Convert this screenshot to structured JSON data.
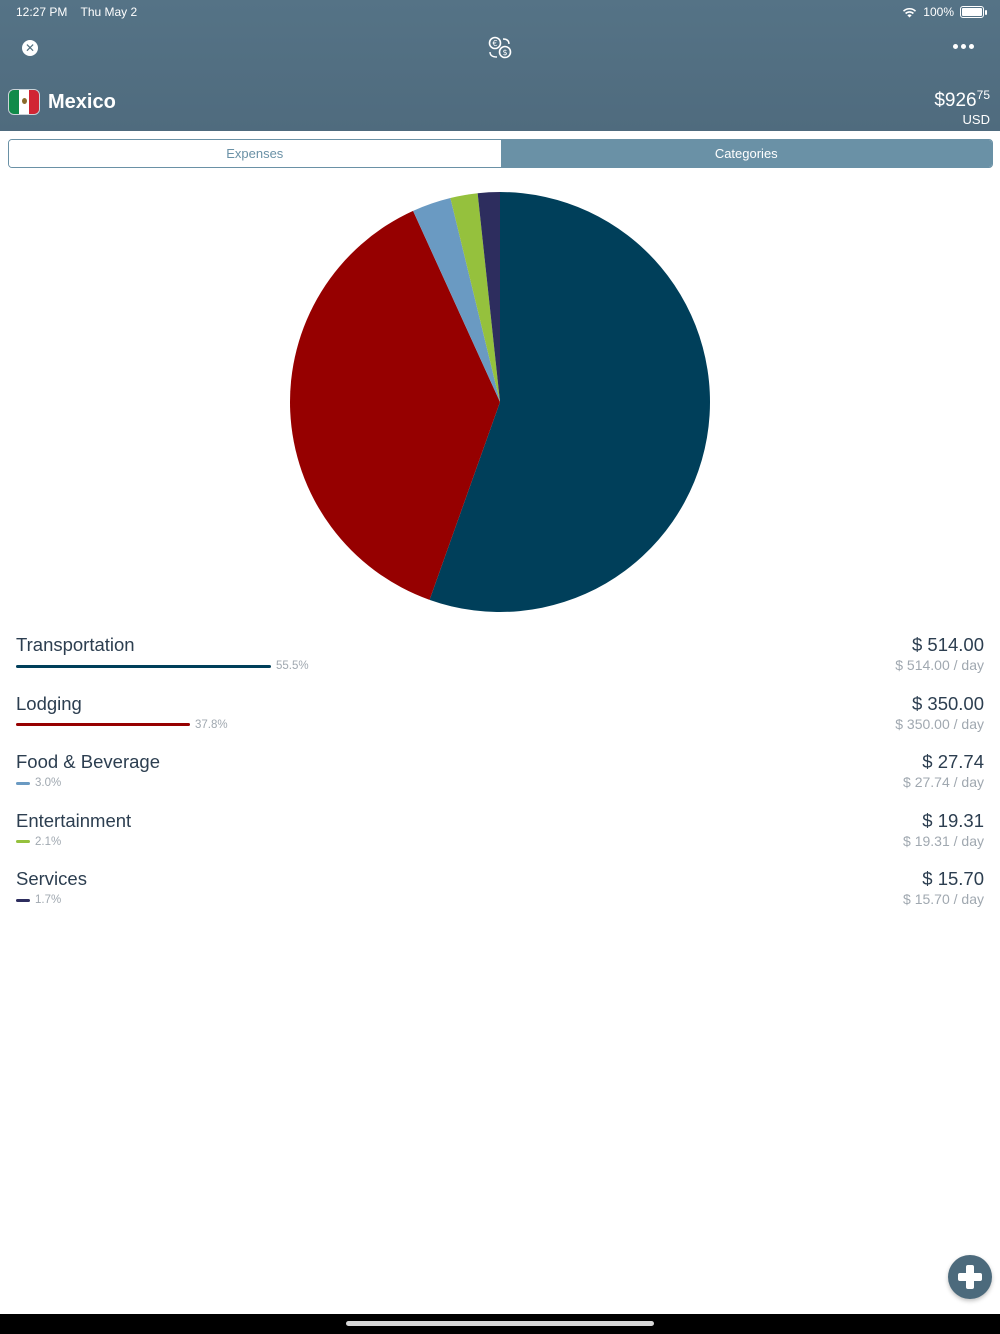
{
  "status": {
    "time": "12:27 PM",
    "date": "Thu May 2",
    "battery": "100%"
  },
  "header": {
    "trip_name": "Mexico",
    "total_whole": "$926",
    "total_cents": "75",
    "total_currency": "USD"
  },
  "tabs": {
    "expenses": "Expenses",
    "categories": "Categories",
    "selected": "Categories"
  },
  "chart_data": {
    "type": "pie",
    "slices": [
      {
        "label": "Transportation",
        "value": 55.5,
        "color": "#003f5a"
      },
      {
        "label": "Lodging",
        "value": 37.8,
        "color": "#960000"
      },
      {
        "label": "Food & Beverage",
        "value": 3.0,
        "color": "#6a9ac2"
      },
      {
        "label": "Entertainment",
        "value": 2.1,
        "color": "#95c13d"
      },
      {
        "label": "Services",
        "value": 1.7,
        "color": "#2d2d5e"
      }
    ]
  },
  "categories": [
    {
      "name": "Transportation",
      "percent": "55.5%",
      "amount": "$ 514.00",
      "per_day": "$ 514.00 / day",
      "color": "#003f5a",
      "share": 0.555
    },
    {
      "name": "Lodging",
      "percent": "37.8%",
      "amount": "$ 350.00",
      "per_day": "$ 350.00 / day",
      "color": "#960000",
      "share": 0.378
    },
    {
      "name": "Food & Beverage",
      "percent": "3.0%",
      "amount": "$ 27.74",
      "per_day": "$ 27.74 / day",
      "color": "#6a9ac2",
      "share": 0.03
    },
    {
      "name": "Entertainment",
      "percent": "2.1%",
      "amount": "$ 19.31",
      "per_day": "$ 19.31 / day",
      "color": "#95c13d",
      "share": 0.021
    },
    {
      "name": "Services",
      "percent": "1.7%",
      "amount": "$ 15.70",
      "per_day": "$ 15.70 / day",
      "color": "#2d2d5e",
      "share": 0.017
    }
  ],
  "icons": {
    "close": "close-icon",
    "currency": "currency-exchange-icon",
    "more": "more-icon",
    "add": "add-icon"
  }
}
